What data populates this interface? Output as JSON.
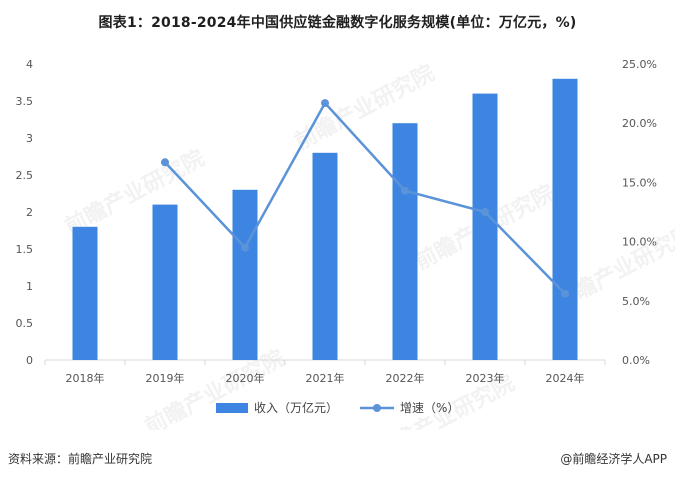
{
  "header": {
    "title": "图表1：2018-2024年中国供应链金融数字化服务规模(单位：万亿元，%)"
  },
  "footer": {
    "source": "资料来源：前瞻产业研究院",
    "brand": "@前瞻经济学人APP"
  },
  "watermark": {
    "text": "前瞻产业研究院"
  },
  "colors": {
    "bar": "#3d85e0",
    "line": "#5b93d9",
    "axis": "#d9d9d9"
  },
  "chart_data": {
    "type": "bar+line",
    "title": "图表1：2018-2024年中国供应链金融数字化服务规模(单位：万亿元，%)",
    "categories": [
      "2018年",
      "2019年",
      "2020年",
      "2021年",
      "2022年",
      "2023年",
      "2024年"
    ],
    "series": [
      {
        "name": "收入（万亿元）",
        "type": "bar",
        "axis": "left",
        "values": [
          1.8,
          2.1,
          2.3,
          2.8,
          3.2,
          3.6,
          3.8
        ]
      },
      {
        "name": "增速（%）",
        "type": "line",
        "axis": "right",
        "values": [
          null,
          16.7,
          9.5,
          21.7,
          14.3,
          12.5,
          5.6
        ]
      }
    ],
    "left_axis": {
      "ylim": [
        0,
        4
      ],
      "ticks": [
        "0",
        "0.5",
        "1",
        "1.5",
        "2",
        "2.5",
        "3",
        "3.5",
        "4"
      ]
    },
    "right_axis": {
      "ylim": [
        0,
        25
      ],
      "ticks": [
        "0.0%",
        "5.0%",
        "10.0%",
        "15.0%",
        "20.0%",
        "25.0%"
      ]
    },
    "legend": {
      "position": "bottom",
      "labels": [
        "收入（万亿元）",
        "增速（%）"
      ]
    }
  }
}
